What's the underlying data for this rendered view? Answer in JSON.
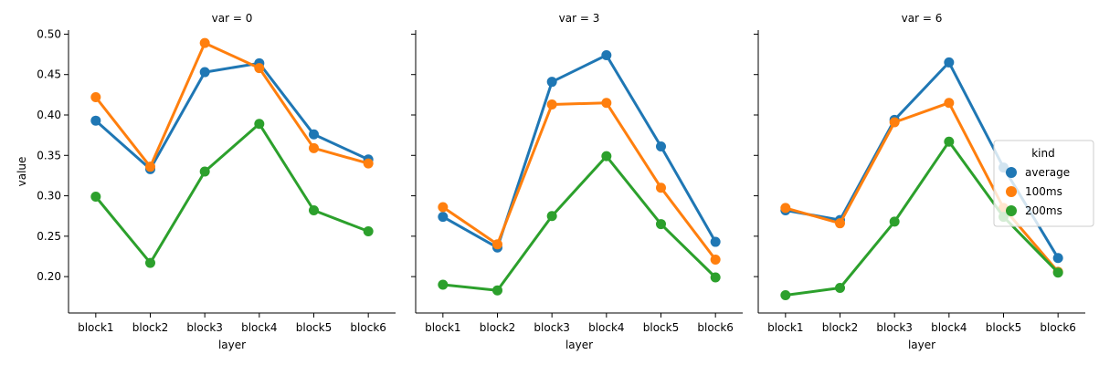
{
  "chart_data": {
    "type": "line",
    "x_label": "layer",
    "y_label": "value",
    "categories": [
      "block1",
      "block2",
      "block3",
      "block4",
      "block5",
      "block6"
    ],
    "ylim": [
      0.155,
      0.505
    ],
    "y_ticks": [
      "0.20",
      "0.25",
      "0.30",
      "0.35",
      "0.40",
      "0.45",
      "0.50"
    ],
    "grid": false,
    "legend": {
      "title": "kind",
      "placement": "right",
      "entries": [
        "average",
        "100ms",
        "200ms"
      ]
    },
    "colors": {
      "average": "#1f77b4",
      "100ms": "#ff7f0e",
      "200ms": "#2ca02c"
    },
    "panels": [
      {
        "title": "var = 0",
        "series": [
          {
            "name": "average",
            "values": [
              0.393,
              0.333,
              0.453,
              0.464,
              0.376,
              0.345
            ]
          },
          {
            "name": "100ms",
            "values": [
              0.422,
              0.336,
              0.489,
              0.458,
              0.359,
              0.34
            ]
          },
          {
            "name": "200ms",
            "values": [
              0.299,
              0.217,
              0.33,
              0.389,
              0.282,
              0.256
            ]
          }
        ]
      },
      {
        "title": "var = 3",
        "series": [
          {
            "name": "average",
            "values": [
              0.274,
              0.236,
              0.441,
              0.474,
              0.361,
              0.243
            ]
          },
          {
            "name": "100ms",
            "values": [
              0.286,
              0.24,
              0.413,
              0.415,
              0.31,
              0.221
            ]
          },
          {
            "name": "200ms",
            "values": [
              0.19,
              0.183,
              0.275,
              0.349,
              0.265,
              0.199
            ]
          }
        ]
      },
      {
        "title": "var = 6",
        "series": [
          {
            "name": "average",
            "values": [
              0.282,
              0.27,
              0.394,
              0.465,
              0.335,
              0.223
            ]
          },
          {
            "name": "100ms",
            "values": [
              0.285,
              0.266,
              0.391,
              0.415,
              0.285,
              0.206
            ]
          },
          {
            "name": "200ms",
            "values": [
              0.177,
              0.186,
              0.268,
              0.367,
              0.274,
              0.205
            ]
          }
        ]
      }
    ]
  }
}
